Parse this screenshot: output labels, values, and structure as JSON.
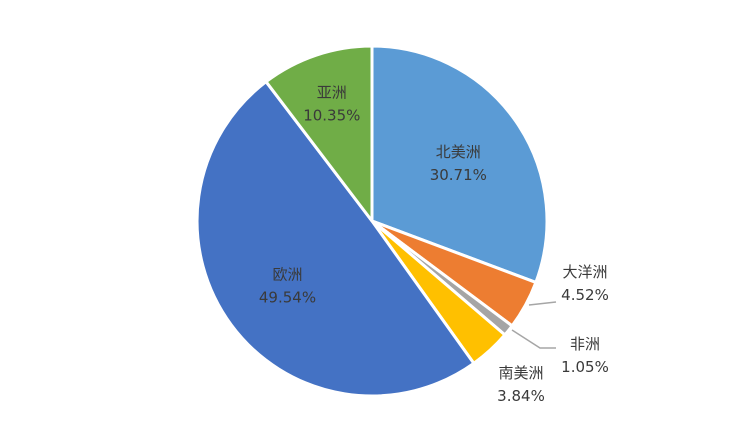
{
  "chart_data": {
    "type": "pie",
    "title": "",
    "legend": "none",
    "slices": [
      {
        "name": "北美洲",
        "value": 30.71,
        "label": "30.71%",
        "color": "#5b9bd5"
      },
      {
        "name": "大洋洲",
        "value": 4.52,
        "label": "4.52%",
        "color": "#ed7d31"
      },
      {
        "name": "非洲",
        "value": 1.05,
        "label": "1.05%",
        "color": "#a5a5a5"
      },
      {
        "name": "南美洲",
        "value": 3.84,
        "label": "3.84%",
        "color": "#ffc000"
      },
      {
        "name": "欧洲",
        "value": 49.54,
        "label": "49.54%",
        "color": "#4472c4"
      },
      {
        "name": "亚洲",
        "value": 10.35,
        "label": "10.35%",
        "color": "#70ad47"
      }
    ]
  }
}
